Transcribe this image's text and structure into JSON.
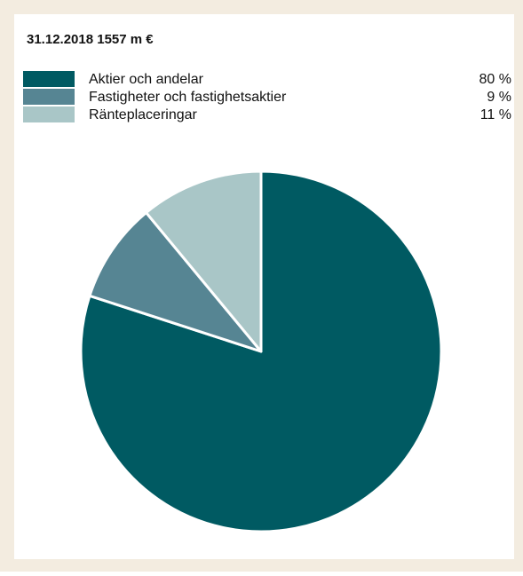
{
  "chart_data": {
    "type": "pie",
    "title": "31.12.2018 1557 m €",
    "categories": [
      "Aktier och andelar",
      "Fastigheter och fastighetsaktier",
      "Ränteplaceringar"
    ],
    "values": [
      80,
      9,
      11
    ],
    "value_labels": [
      "80 %",
      "9 %",
      "11 %"
    ],
    "colors": [
      "#005a62",
      "#568593",
      "#a9c6c7"
    ]
  }
}
